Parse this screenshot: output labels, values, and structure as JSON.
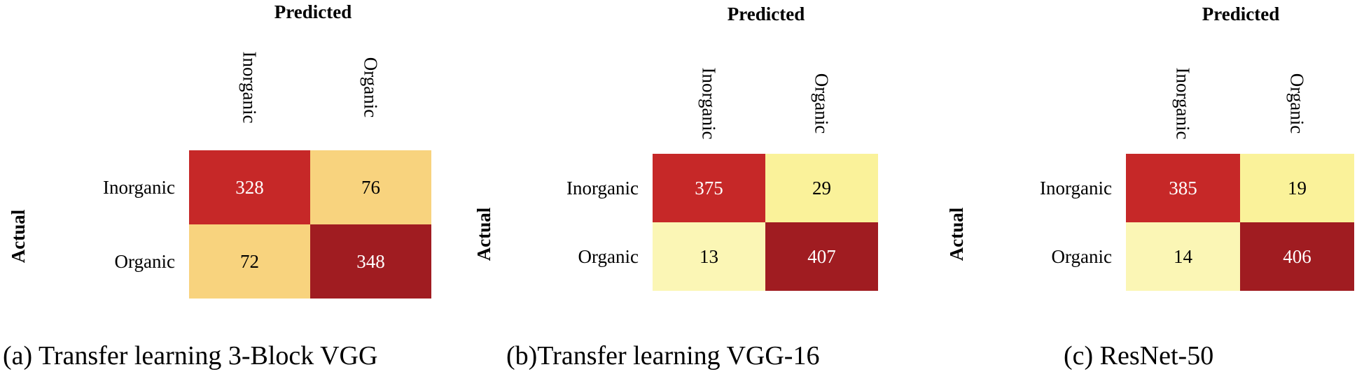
{
  "chart_data": [
    {
      "type": "heatmap",
      "caption": "(a) Transfer learning 3-Block VGG",
      "xlabel": "Predicted",
      "ylabel": "Actual",
      "x_categories": [
        "Inorganic",
        "Organic"
      ],
      "y_categories": [
        "Inorganic",
        "Organic"
      ],
      "values": [
        [
          328,
          76
        ],
        [
          72,
          348
        ]
      ],
      "cell_colors": [
        [
          "#c62828",
          "#f8d37e"
        ],
        [
          "#f8d37e",
          "#a01c21"
        ]
      ],
      "text_colors": [
        [
          "#ffffff",
          "#000000"
        ],
        [
          "#000000",
          "#ffffff"
        ]
      ]
    },
    {
      "type": "heatmap",
      "caption": "(b)Transfer learning VGG-16",
      "xlabel": "Predicted",
      "ylabel": "Actual",
      "x_categories": [
        "Inorganic",
        "Organic"
      ],
      "y_categories": [
        "Inorganic",
        "Organic"
      ],
      "values": [
        [
          375,
          29
        ],
        [
          13,
          407
        ]
      ],
      "cell_colors": [
        [
          "#c62828",
          "#faf29a"
        ],
        [
          "#fbf6b5",
          "#a01c21"
        ]
      ],
      "text_colors": [
        [
          "#ffffff",
          "#000000"
        ],
        [
          "#000000",
          "#ffffff"
        ]
      ]
    },
    {
      "type": "heatmap",
      "caption": "(c) ResNet-50",
      "xlabel": "Predicted",
      "ylabel": "Actual",
      "x_categories": [
        "Inorganic",
        "Organic"
      ],
      "y_categories": [
        "Inorganic",
        "Organic"
      ],
      "values": [
        [
          385,
          19
        ],
        [
          14,
          406
        ]
      ],
      "cell_colors": [
        [
          "#c62828",
          "#faf29a"
        ],
        [
          "#fbf6b5",
          "#a01c21"
        ]
      ],
      "text_colors": [
        [
          "#ffffff",
          "#000000"
        ],
        [
          "#000000",
          "#ffffff"
        ]
      ]
    }
  ]
}
